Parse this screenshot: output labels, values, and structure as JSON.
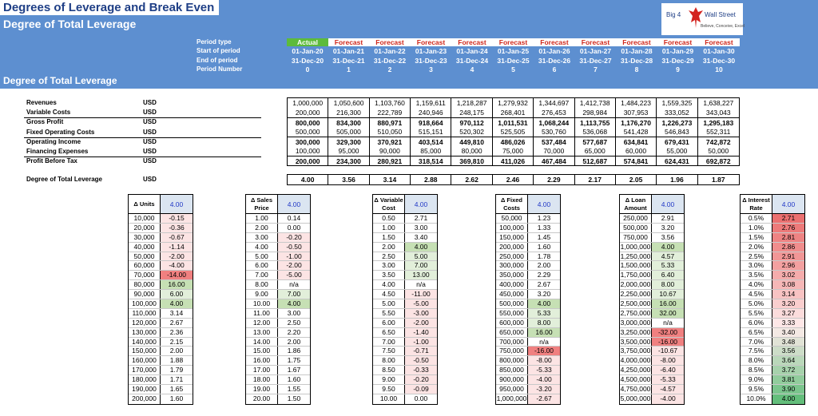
{
  "header": {
    "title": "Degrees of Leverage and Break Even",
    "subtitle": "Degree of Total Leverage",
    "section_title": "Degree of Total Leverage"
  },
  "logo": {
    "name_left": "Big 4",
    "name_right": "Wall Street",
    "tagline": "Believe, Conceive, Excel",
    "icon": "eagle-icon"
  },
  "periods": {
    "labels": [
      "Period type",
      "Start of period",
      "End of period",
      "Period Number"
    ],
    "types": [
      "Actual",
      "Forecast",
      "Forecast",
      "Forecast",
      "Forecast",
      "Forecast",
      "Forecast",
      "Forecast",
      "Forecast",
      "Forecast",
      "Forecast"
    ],
    "starts": [
      "01-Jan-20",
      "01-Jan-21",
      "01-Jan-22",
      "01-Jan-23",
      "01-Jan-24",
      "01-Jan-25",
      "01-Jan-26",
      "01-Jan-27",
      "01-Jan-28",
      "01-Jan-29",
      "01-Jan-30"
    ],
    "ends": [
      "31-Dec-20",
      "31-Dec-21",
      "31-Dec-22",
      "31-Dec-23",
      "31-Dec-24",
      "31-Dec-25",
      "31-Dec-26",
      "31-Dec-27",
      "31-Dec-28",
      "31-Dec-29",
      "31-Dec-30"
    ],
    "numbers": [
      "0",
      "1",
      "2",
      "3",
      "4",
      "5",
      "6",
      "7",
      "8",
      "9",
      "10"
    ]
  },
  "pl": {
    "rows": [
      {
        "label": "Revenues",
        "unit": "USD",
        "bold": false,
        "values": [
          "1,000,000",
          "1,050,600",
          "1,103,760",
          "1,159,611",
          "1,218,287",
          "1,279,932",
          "1,344,697",
          "1,412,738",
          "1,484,223",
          "1,559,325",
          "1,638,227"
        ]
      },
      {
        "label": "Variable Costs",
        "unit": "USD",
        "bold": false,
        "values": [
          "200,000",
          "216,300",
          "222,789",
          "240,946",
          "248,175",
          "268,401",
          "276,453",
          "298,984",
          "307,953",
          "333,052",
          "343,043"
        ]
      },
      {
        "label": "Gross Profit",
        "unit": "USD",
        "bold": true,
        "values": [
          "800,000",
          "834,300",
          "880,971",
          "918,664",
          "970,112",
          "1,011,531",
          "1,068,244",
          "1,113,755",
          "1,176,270",
          "1,226,273",
          "1,295,183"
        ]
      },
      {
        "label": "Fixed Operating Costs",
        "unit": "USD",
        "bold": false,
        "values": [
          "500,000",
          "505,000",
          "510,050",
          "515,151",
          "520,302",
          "525,505",
          "530,760",
          "536,068",
          "541,428",
          "546,843",
          "552,311"
        ]
      },
      {
        "label": "Operating Income",
        "unit": "USD",
        "bold": true,
        "values": [
          "300,000",
          "329,300",
          "370,921",
          "403,514",
          "449,810",
          "486,026",
          "537,484",
          "577,687",
          "634,841",
          "679,431",
          "742,872"
        ]
      },
      {
        "label": "Financing Expenses",
        "unit": "USD",
        "bold": false,
        "values": [
          "100,000",
          "95,000",
          "90,000",
          "85,000",
          "80,000",
          "75,000",
          "70,000",
          "65,000",
          "60,000",
          "55,000",
          "50,000"
        ]
      },
      {
        "label": "Profit Before Tax",
        "unit": "USD",
        "bold": true,
        "values": [
          "200,000",
          "234,300",
          "280,921",
          "318,514",
          "369,810",
          "411,026",
          "467,484",
          "512,687",
          "574,841",
          "624,431",
          "692,872"
        ]
      }
    ],
    "dtl": {
      "label": "Degree of Total Leverage",
      "unit": "USD",
      "values": [
        "4.00",
        "3.56",
        "3.14",
        "2.88",
        "2.62",
        "2.46",
        "2.29",
        "2.17",
        "2.05",
        "1.96",
        "1.87"
      ]
    }
  },
  "colors": {
    "green": "#c6e0b4",
    "light_green": "#e2efda",
    "red": "#f08080",
    "light_red": "#fce4e4"
  },
  "sensitivity": [
    {
      "header": "Δ Units",
      "base": "4.00",
      "inputs": [
        "10,000",
        "20,000",
        "30,000",
        "40,000",
        "50,000",
        "60,000",
        "70,000",
        "80,000",
        "90,000",
        "100,000",
        "110,000",
        "120,000",
        "130,000",
        "140,000",
        "150,000",
        "160,000",
        "170,000",
        "180,000",
        "190,000",
        "200,000"
      ],
      "outputs": [
        "-0.15",
        "-0.36",
        "-0.67",
        "-1.14",
        "-2.00",
        "-4.00",
        "-14.00",
        "16.00",
        "6.00",
        "4.00",
        "3.14",
        "2.67",
        "2.36",
        "2.15",
        "2.00",
        "1.88",
        "1.79",
        "1.71",
        "1.65",
        "1.60"
      ]
    },
    {
      "header": "Δ Sales Price",
      "base": "4.00",
      "inputs": [
        "1.00",
        "2.00",
        "3.00",
        "4.00",
        "5.00",
        "6.00",
        "7.00",
        "8.00",
        "9.00",
        "10.00",
        "11.00",
        "12.00",
        "13.00",
        "14.00",
        "15.00",
        "16.00",
        "17.00",
        "18.00",
        "19.00",
        "20.00"
      ],
      "outputs": [
        "0.14",
        "0.00",
        "-0.20",
        "-0.50",
        "-1.00",
        "-2.00",
        "-5.00",
        "n/a",
        "7.00",
        "4.00",
        "3.00",
        "2.50",
        "2.20",
        "2.00",
        "1.86",
        "1.75",
        "1.67",
        "1.60",
        "1.55",
        "1.50"
      ]
    },
    {
      "header": "Δ Variable Cost",
      "base": "4.00",
      "inputs": [
        "0.50",
        "1.00",
        "1.50",
        "2.00",
        "2.50",
        "3.00",
        "3.50",
        "4.00",
        "4.50",
        "5.00",
        "5.50",
        "6.00",
        "6.50",
        "7.00",
        "7.50",
        "8.00",
        "8.50",
        "9.00",
        "9.50",
        "10.00"
      ],
      "outputs": [
        "2.71",
        "3.00",
        "3.40",
        "4.00",
        "5.00",
        "7.00",
        "13.00",
        "n/a",
        "-11.00",
        "-5.00",
        "-3.00",
        "-2.00",
        "-1.40",
        "-1.00",
        "-0.71",
        "-0.50",
        "-0.33",
        "-0.20",
        "-0.09",
        "0.00"
      ]
    },
    {
      "header": "Δ Fixed Costs",
      "base": "4.00",
      "inputs": [
        "50,000",
        "100,000",
        "150,000",
        "200,000",
        "250,000",
        "300,000",
        "350,000",
        "400,000",
        "450,000",
        "500,000",
        "550,000",
        "600,000",
        "650,000",
        "700,000",
        "750,000",
        "800,000",
        "850,000",
        "900,000",
        "950,000",
        "1,000,000"
      ],
      "outputs": [
        "1.23",
        "1.33",
        "1.45",
        "1.60",
        "1.78",
        "2.00",
        "2.29",
        "2.67",
        "3.20",
        "4.00",
        "5.33",
        "8.00",
        "16.00",
        "n/a",
        "-16.00",
        "-8.00",
        "-5.33",
        "-4.00",
        "-3.20",
        "-2.67"
      ]
    },
    {
      "header": "Δ Loan Amount",
      "base": "4.00",
      "inputs": [
        "250,000",
        "500,000",
        "750,000",
        "1,000,000",
        "1,250,000",
        "1,500,000",
        "1,750,000",
        "2,000,000",
        "2,250,000",
        "2,500,000",
        "2,750,000",
        "3,000,000",
        "3,250,000",
        "3,500,000",
        "3,750,000",
        "4,000,000",
        "4,250,000",
        "4,500,000",
        "4,750,000",
        "5,000,000"
      ],
      "outputs": [
        "2.91",
        "3.20",
        "3.56",
        "4.00",
        "4.57",
        "5.33",
        "6.40",
        "8.00",
        "10.67",
        "16.00",
        "32.00",
        "n/a",
        "-32.00",
        "-16.00",
        "-10.67",
        "-8.00",
        "-6.40",
        "-5.33",
        "-4.57",
        "-4.00"
      ]
    },
    {
      "header": "Δ Interest Rate",
      "base": "4.00",
      "inputs": [
        "0.5%",
        "1.0%",
        "1.5%",
        "2.0%",
        "2.5%",
        "3.0%",
        "3.5%",
        "4.0%",
        "4.5%",
        "5.0%",
        "5.5%",
        "6.0%",
        "6.5%",
        "7.0%",
        "7.5%",
        "8.0%",
        "8.5%",
        "9.0%",
        "9.5%",
        "10.0%"
      ],
      "outputs": [
        "2.71",
        "2.76",
        "2.81",
        "2.86",
        "2.91",
        "2.96",
        "3.02",
        "3.08",
        "3.14",
        "3.20",
        "3.27",
        "3.33",
        "3.40",
        "3.48",
        "3.56",
        "3.64",
        "3.72",
        "3.81",
        "3.90",
        "4.00"
      ]
    }
  ]
}
